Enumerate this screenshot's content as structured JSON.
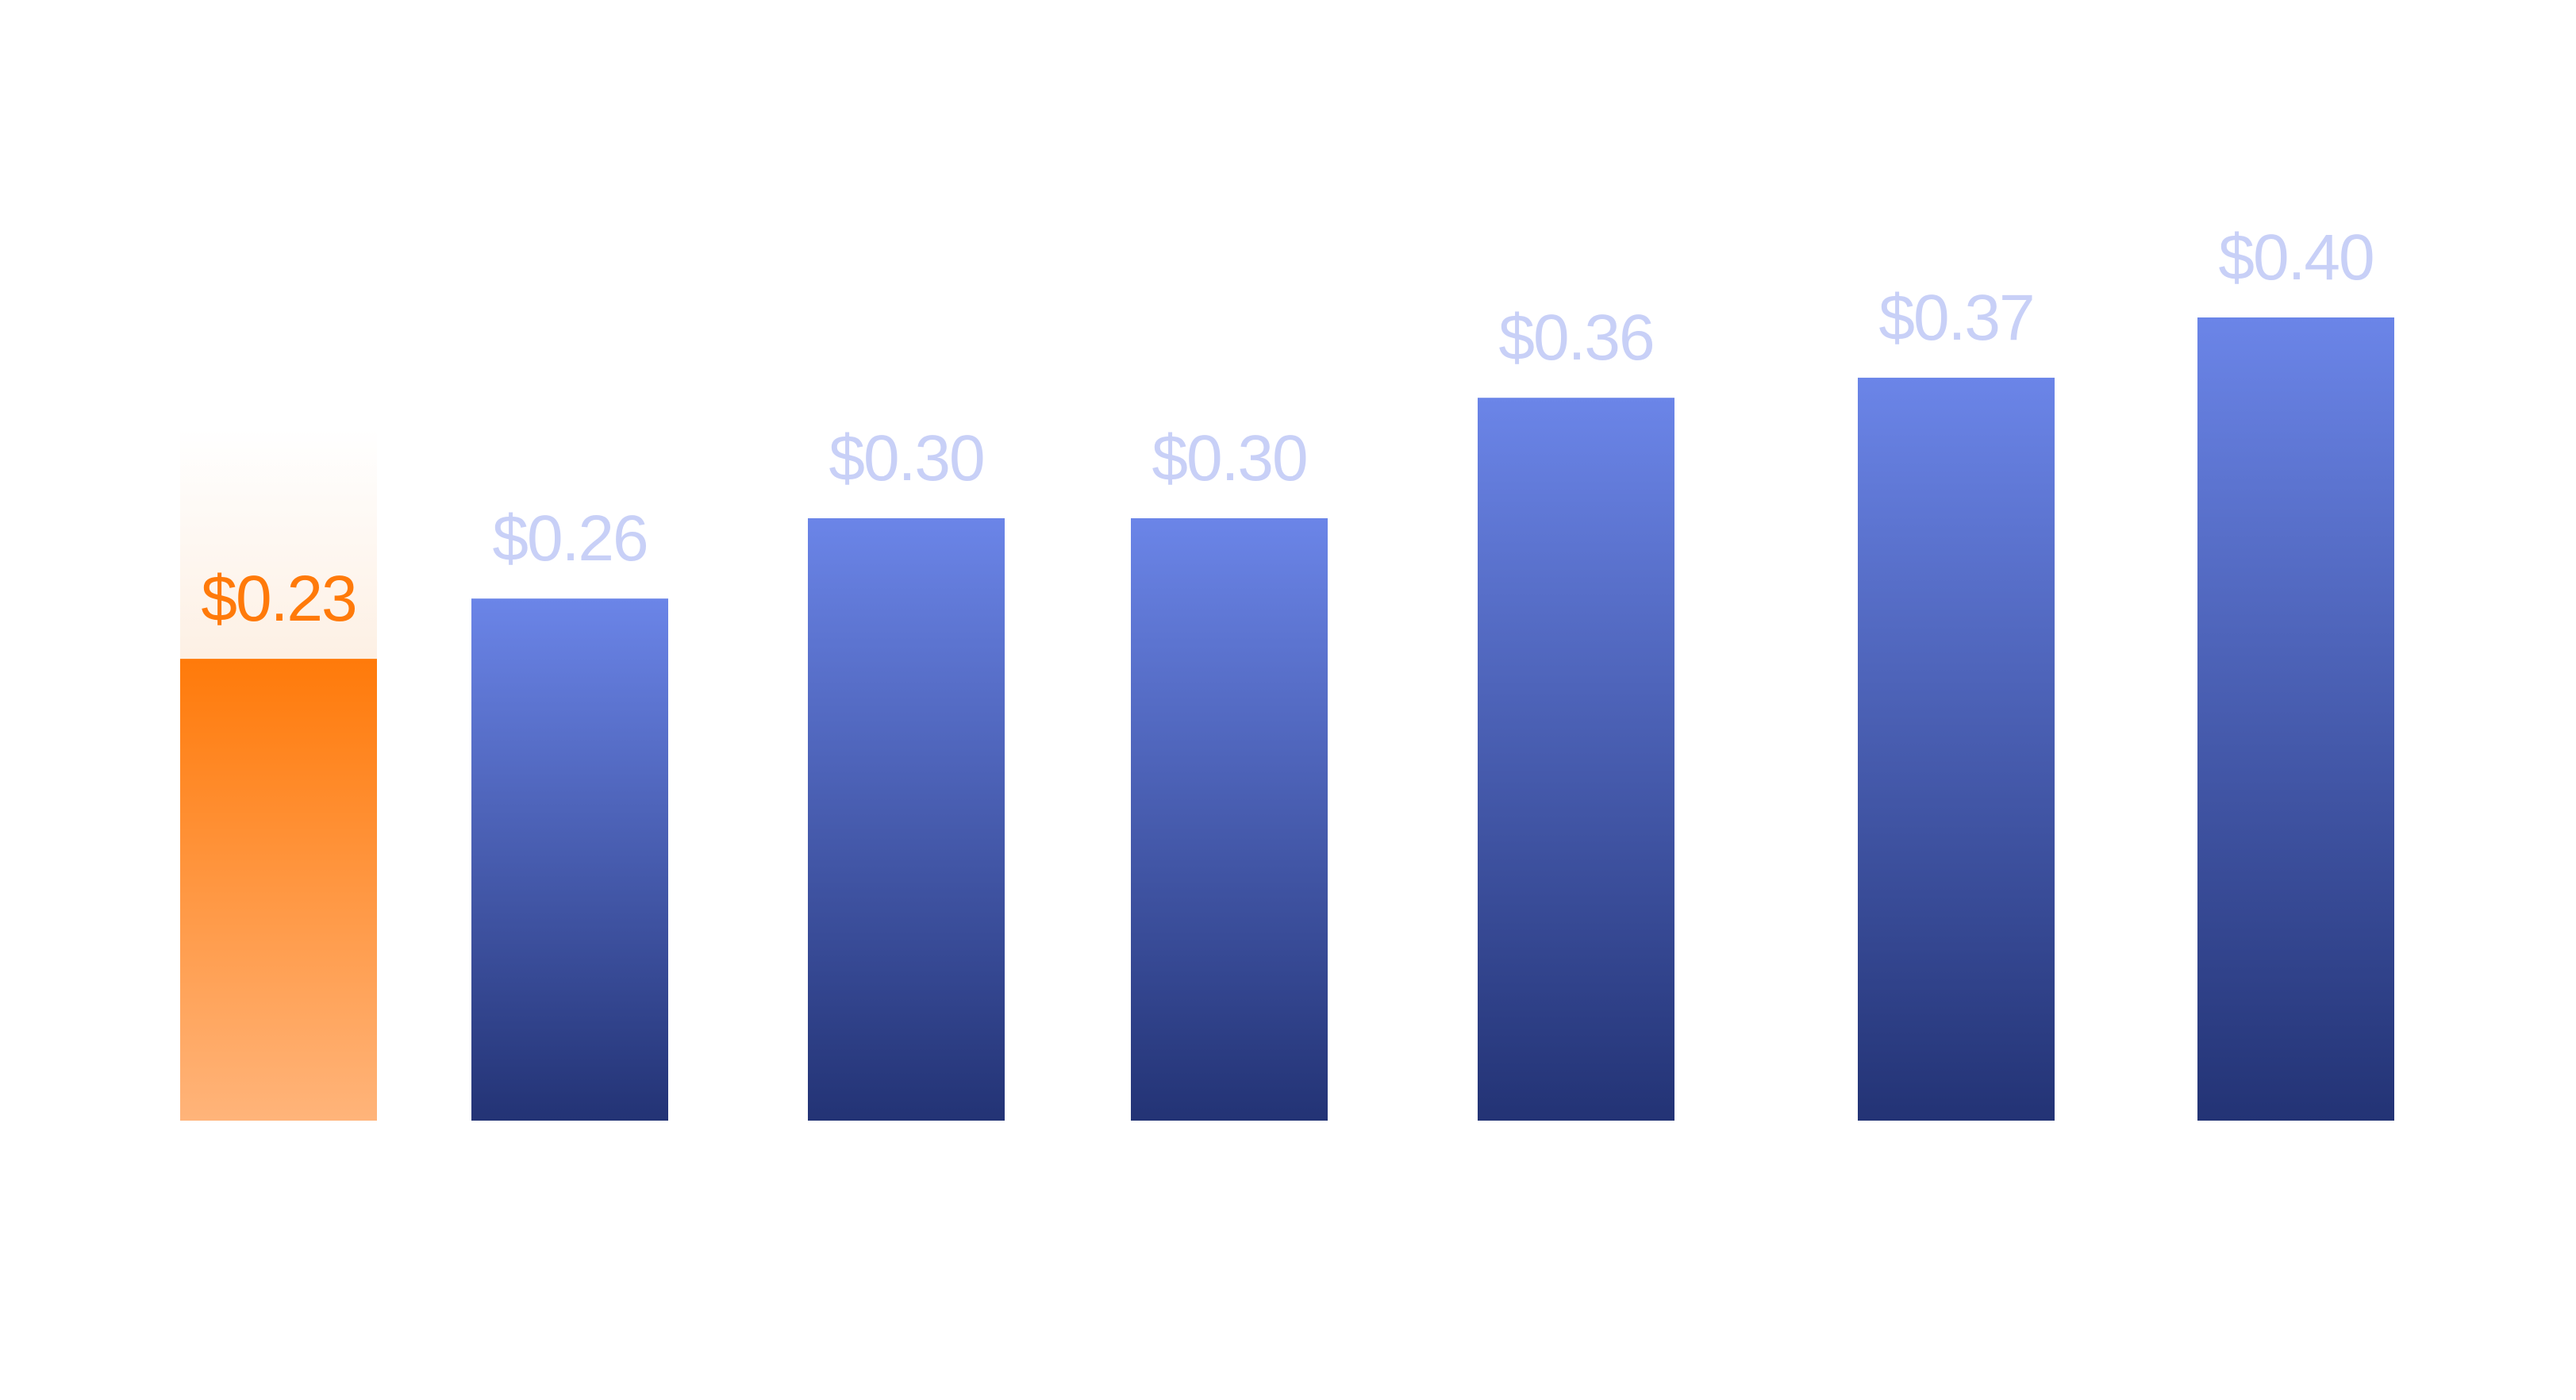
{
  "chart_data": {
    "type": "bar",
    "title": "",
    "xlabel": "",
    "ylabel": "",
    "categories": [
      "",
      "",
      "",
      "",
      "",
      "",
      ""
    ],
    "values": [
      0.23,
      0.26,
      0.3,
      0.3,
      0.36,
      0.37,
      0.4
    ],
    "value_labels": [
      "$0.23",
      "$0.26",
      "$0.30",
      "$0.30",
      "$0.36",
      "$0.37",
      "$0.40"
    ],
    "ylim": [
      0,
      0.4
    ],
    "grid": false,
    "highlight_index": 0,
    "colors": {
      "highlight_top": "#ff7a0a",
      "highlight_bottom": "#ffb47a",
      "highlight_label": "#ff7a0a",
      "highlight_glow": "#fdf0e4",
      "bar_top": "#6b85e8",
      "bar_bottom": "#233375",
      "value_label": "#c8d0f7",
      "category_label": "#f2f2f4"
    }
  }
}
